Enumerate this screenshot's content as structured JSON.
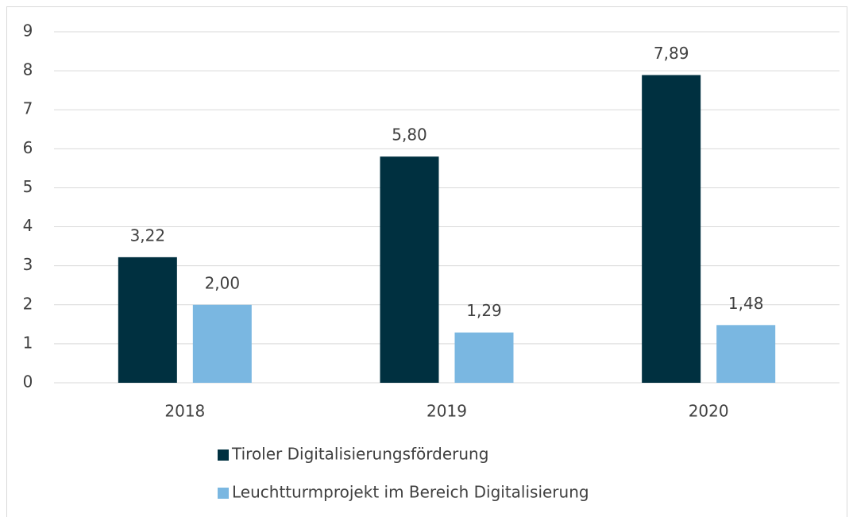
{
  "chart_data": {
    "type": "bar",
    "categories": [
      "2018",
      "2019",
      "2020"
    ],
    "series": [
      {
        "name": "Tiroler Digitalisierungsförderung",
        "color": "#003040",
        "values": [
          3.22,
          5.8,
          7.89
        ],
        "value_labels": [
          "3,22",
          "5,80",
          "7,89"
        ]
      },
      {
        "name": "Leuchtturmprojekt im Bereich Digitalisierung",
        "color": "#7ab7e1",
        "values": [
          2.0,
          1.29,
          1.48
        ],
        "value_labels": [
          "2,00",
          "1,29",
          "1,48"
        ]
      }
    ],
    "ylim": [
      0,
      9
    ],
    "yticks": [
      0,
      1,
      2,
      3,
      4,
      5,
      6,
      7,
      8,
      9
    ],
    "grid": true,
    "legend": "bottom"
  }
}
